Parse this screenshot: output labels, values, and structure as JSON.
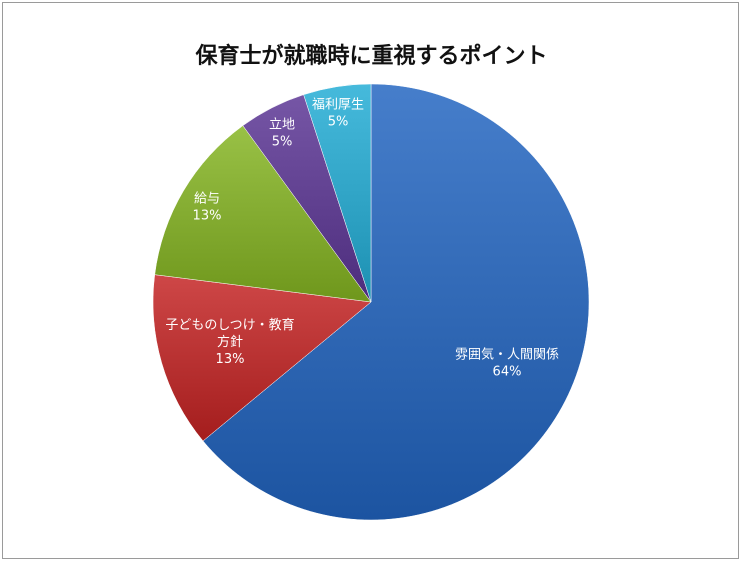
{
  "chart_data": {
    "type": "pie",
    "title": "保育士が就職時に重視するポイント",
    "slices": [
      {
        "label_lines": [
          "雰囲気・人間関係"
        ],
        "percent_label": "64%",
        "value": 64,
        "color": "#3a72bf"
      },
      {
        "label_lines": [
          "子どものしつけ・教育",
          "方針"
        ],
        "percent_label": "13%",
        "value": 13,
        "color": "#c23b3b"
      },
      {
        "label_lines": [
          "給与"
        ],
        "percent_label": "13%",
        "value": 13,
        "color": "#8db53a"
      },
      {
        "label_lines": [
          "立地"
        ],
        "percent_label": "5%",
        "value": 5,
        "color": "#6a4a9a"
      },
      {
        "label_lines": [
          "福利厚生"
        ],
        "percent_label": "5%",
        "value": 5,
        "color": "#3aaed0"
      }
    ],
    "legend": "none"
  }
}
